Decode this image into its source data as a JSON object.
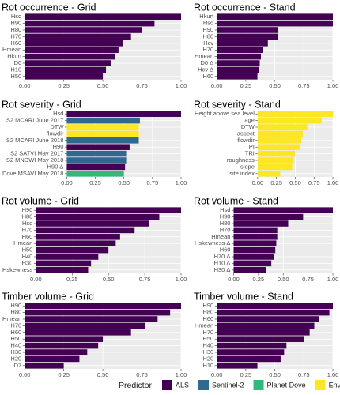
{
  "chart_data": [
    {
      "type": "bar",
      "orientation": "horizontal",
      "title": "Rot occurrence - Grid",
      "categories": [
        "Hsd",
        "H90",
        "H80",
        "H70",
        "H60",
        "Hmean",
        "Hkurt",
        "D0",
        "H10",
        "H50"
      ],
      "values": [
        1.0,
        0.83,
        0.75,
        0.68,
        0.63,
        0.6,
        0.58,
        0.55,
        0.52,
        0.5
      ],
      "colors": [
        "#440154",
        "#440154",
        "#440154",
        "#440154",
        "#440154",
        "#440154",
        "#440154",
        "#440154",
        "#440154",
        "#440154"
      ],
      "xlim": [
        0,
        1
      ],
      "xticks": [
        {
          "value": 0,
          "label": "0.00"
        },
        {
          "value": 0.25,
          "label": "0.25"
        },
        {
          "value": 0.5,
          "label": "0.50"
        },
        {
          "value": 0.75,
          "label": "0.75"
        },
        {
          "value": 1,
          "label": "1.00"
        }
      ],
      "grid": true
    },
    {
      "type": "bar",
      "orientation": "horizontal",
      "title": "Rot occurrence - Stand",
      "categories": [
        "Hkurt",
        "Hsd",
        "H90",
        "H80",
        "Hcv",
        "H70",
        "Hmean",
        "D0 Δ",
        "Hcv Δ",
        "H60"
      ],
      "values": [
        1.0,
        1.0,
        0.53,
        0.53,
        0.44,
        0.4,
        0.38,
        0.37,
        0.36,
        0.35
      ],
      "colors": [
        "#440154",
        "#440154",
        "#440154",
        "#440154",
        "#440154",
        "#440154",
        "#440154",
        "#440154",
        "#440154",
        "#440154"
      ],
      "xlim": [
        0,
        1
      ],
      "xticks": [
        {
          "value": 0,
          "label": "0.00"
        },
        {
          "value": 0.25,
          "label": "0.25"
        },
        {
          "value": 0.5,
          "label": "0.50"
        },
        {
          "value": 0.75,
          "label": "0.75"
        },
        {
          "value": 1,
          "label": "1.00"
        }
      ],
      "grid": true
    },
    {
      "type": "bar",
      "orientation": "horizontal",
      "title": "Rot severity - Grid",
      "categories": [
        "Hsd",
        "S2 MCARI June 2017",
        "DTW",
        "flowdir",
        "S2 MCARI June 2018",
        "H90",
        "S2 SATVI May 2017",
        "S2 MNDWI May 2018",
        "H90 Δ",
        "Dove MSAVI May 2018"
      ],
      "values": [
        1.0,
        0.64,
        0.63,
        0.63,
        0.63,
        0.55,
        0.52,
        0.52,
        0.51,
        0.5
      ],
      "colors": [
        "#440154",
        "#31688e",
        "#fde725",
        "#fde725",
        "#31688e",
        "#440154",
        "#31688e",
        "#31688e",
        "#440154",
        "#35b779"
      ],
      "xlim": [
        0,
        1
      ],
      "xticks": [
        {
          "value": 0,
          "label": "0.00"
        },
        {
          "value": 0.25,
          "label": "0.25"
        },
        {
          "value": 0.5,
          "label": "0.50"
        },
        {
          "value": 0.75,
          "label": "0.75"
        },
        {
          "value": 1,
          "label": "1.00"
        }
      ],
      "grid": true
    },
    {
      "type": "bar",
      "orientation": "horizontal",
      "title": "Rot severity - Stand",
      "categories": [
        "Height above sea level",
        "age",
        "DTW",
        "aspect",
        "flowdir",
        "TPI",
        "TRI",
        "roughness",
        "slope",
        "site index"
      ],
      "values": [
        1.0,
        0.85,
        0.66,
        0.6,
        0.58,
        0.57,
        0.5,
        0.48,
        0.46,
        0.3
      ],
      "colors": [
        "#fde725",
        "#fde725",
        "#fde725",
        "#fde725",
        "#fde725",
        "#fde725",
        "#fde725",
        "#fde725",
        "#fde725",
        "#fde725"
      ],
      "xlim": [
        0,
        1
      ],
      "xticks": [
        {
          "value": 0,
          "label": "0.00"
        },
        {
          "value": 0.25,
          "label": "0.25"
        },
        {
          "value": 0.5,
          "label": "0.50"
        },
        {
          "value": 0.75,
          "label": "0.75"
        },
        {
          "value": 1,
          "label": "1.00"
        }
      ],
      "grid": true
    },
    {
      "type": "bar",
      "orientation": "horizontal",
      "title": "Rot volume - Grid",
      "categories": [
        "H90",
        "H80",
        "Hsd",
        "H70",
        "H60",
        "Hmean",
        "H50",
        "H40",
        "H30",
        "Hskewness"
      ],
      "values": [
        1.0,
        0.85,
        0.78,
        0.68,
        0.58,
        0.55,
        0.5,
        0.43,
        0.38,
        0.36
      ],
      "colors": [
        "#440154",
        "#440154",
        "#440154",
        "#440154",
        "#440154",
        "#440154",
        "#440154",
        "#440154",
        "#440154",
        "#440154"
      ],
      "xlim": [
        0,
        1
      ],
      "xticks": [
        {
          "value": 0,
          "label": "0.00"
        },
        {
          "value": 0.25,
          "label": "0.25"
        },
        {
          "value": 0.5,
          "label": "0.50"
        },
        {
          "value": 0.75,
          "label": "0.75"
        },
        {
          "value": 1,
          "label": "1.00"
        }
      ],
      "grid": true
    },
    {
      "type": "bar",
      "orientation": "horizontal",
      "title": "Rot volume - Stand",
      "categories": [
        "Hsd",
        "H90",
        "H80",
        "H70",
        "Hmean",
        "Hskewness Δ",
        "H60",
        "H70 Δ",
        "H10 Δ",
        "H30 Δ"
      ],
      "values": [
        1.0,
        0.7,
        0.55,
        0.44,
        0.44,
        0.43,
        0.42,
        0.41,
        0.38,
        0.33
      ],
      "colors": [
        "#440154",
        "#440154",
        "#440154",
        "#440154",
        "#440154",
        "#440154",
        "#440154",
        "#440154",
        "#440154",
        "#440154"
      ],
      "xlim": [
        0,
        1
      ],
      "xticks": [
        {
          "value": 0,
          "label": "0.00"
        },
        {
          "value": 0.25,
          "label": "0.25"
        },
        {
          "value": 0.5,
          "label": "0.50"
        },
        {
          "value": 0.75,
          "label": "0.75"
        },
        {
          "value": 1,
          "label": "1.00"
        }
      ],
      "grid": true
    },
    {
      "type": "bar",
      "orientation": "horizontal",
      "title": "Timber volume - Grid",
      "categories": [
        "H90",
        "H80",
        "Hmean",
        "H70",
        "H60",
        "H50",
        "H40",
        "H30",
        "H20",
        "D7"
      ],
      "values": [
        1.0,
        0.93,
        0.85,
        0.77,
        0.68,
        0.5,
        0.47,
        0.4,
        0.35,
        0.25
      ],
      "colors": [
        "#440154",
        "#440154",
        "#440154",
        "#440154",
        "#440154",
        "#440154",
        "#440154",
        "#440154",
        "#440154",
        "#440154"
      ],
      "xlim": [
        0,
        1
      ],
      "xticks": [
        {
          "value": 0,
          "label": "0.00"
        },
        {
          "value": 0.25,
          "label": "0.25"
        },
        {
          "value": 0.5,
          "label": "0.50"
        },
        {
          "value": 0.75,
          "label": "0.75"
        },
        {
          "value": 1,
          "label": "1.00"
        }
      ],
      "grid": true
    },
    {
      "type": "bar",
      "orientation": "horizontal",
      "title": "Timber volume - Stand",
      "categories": [
        "H90",
        "H80",
        "H60",
        "Hmean",
        "H70",
        "H50",
        "H40",
        "H30",
        "H20",
        "H10"
      ],
      "values": [
        1.0,
        0.97,
        0.88,
        0.84,
        0.8,
        0.75,
        0.6,
        0.58,
        0.55,
        0.35
      ],
      "colors": [
        "#440154",
        "#440154",
        "#440154",
        "#440154",
        "#440154",
        "#440154",
        "#440154",
        "#440154",
        "#440154",
        "#440154"
      ],
      "xlim": [
        0,
        1
      ],
      "xticks": [
        {
          "value": 0,
          "label": "0.00"
        },
        {
          "value": 0.25,
          "label": "0.25"
        },
        {
          "value": 0.5,
          "label": "0.50"
        },
        {
          "value": 0.75,
          "label": "0.75"
        },
        {
          "value": 1,
          "label": "1.00"
        }
      ],
      "grid": true
    }
  ],
  "legend": {
    "title": "Predictor",
    "items": [
      {
        "name": "ALS",
        "color": "#440154"
      },
      {
        "name": "Sentinel-2",
        "color": "#31688e"
      },
      {
        "name": "Planet Dove",
        "color": "#35b779"
      },
      {
        "name": "Environmental",
        "color": "#fde725"
      }
    ]
  }
}
